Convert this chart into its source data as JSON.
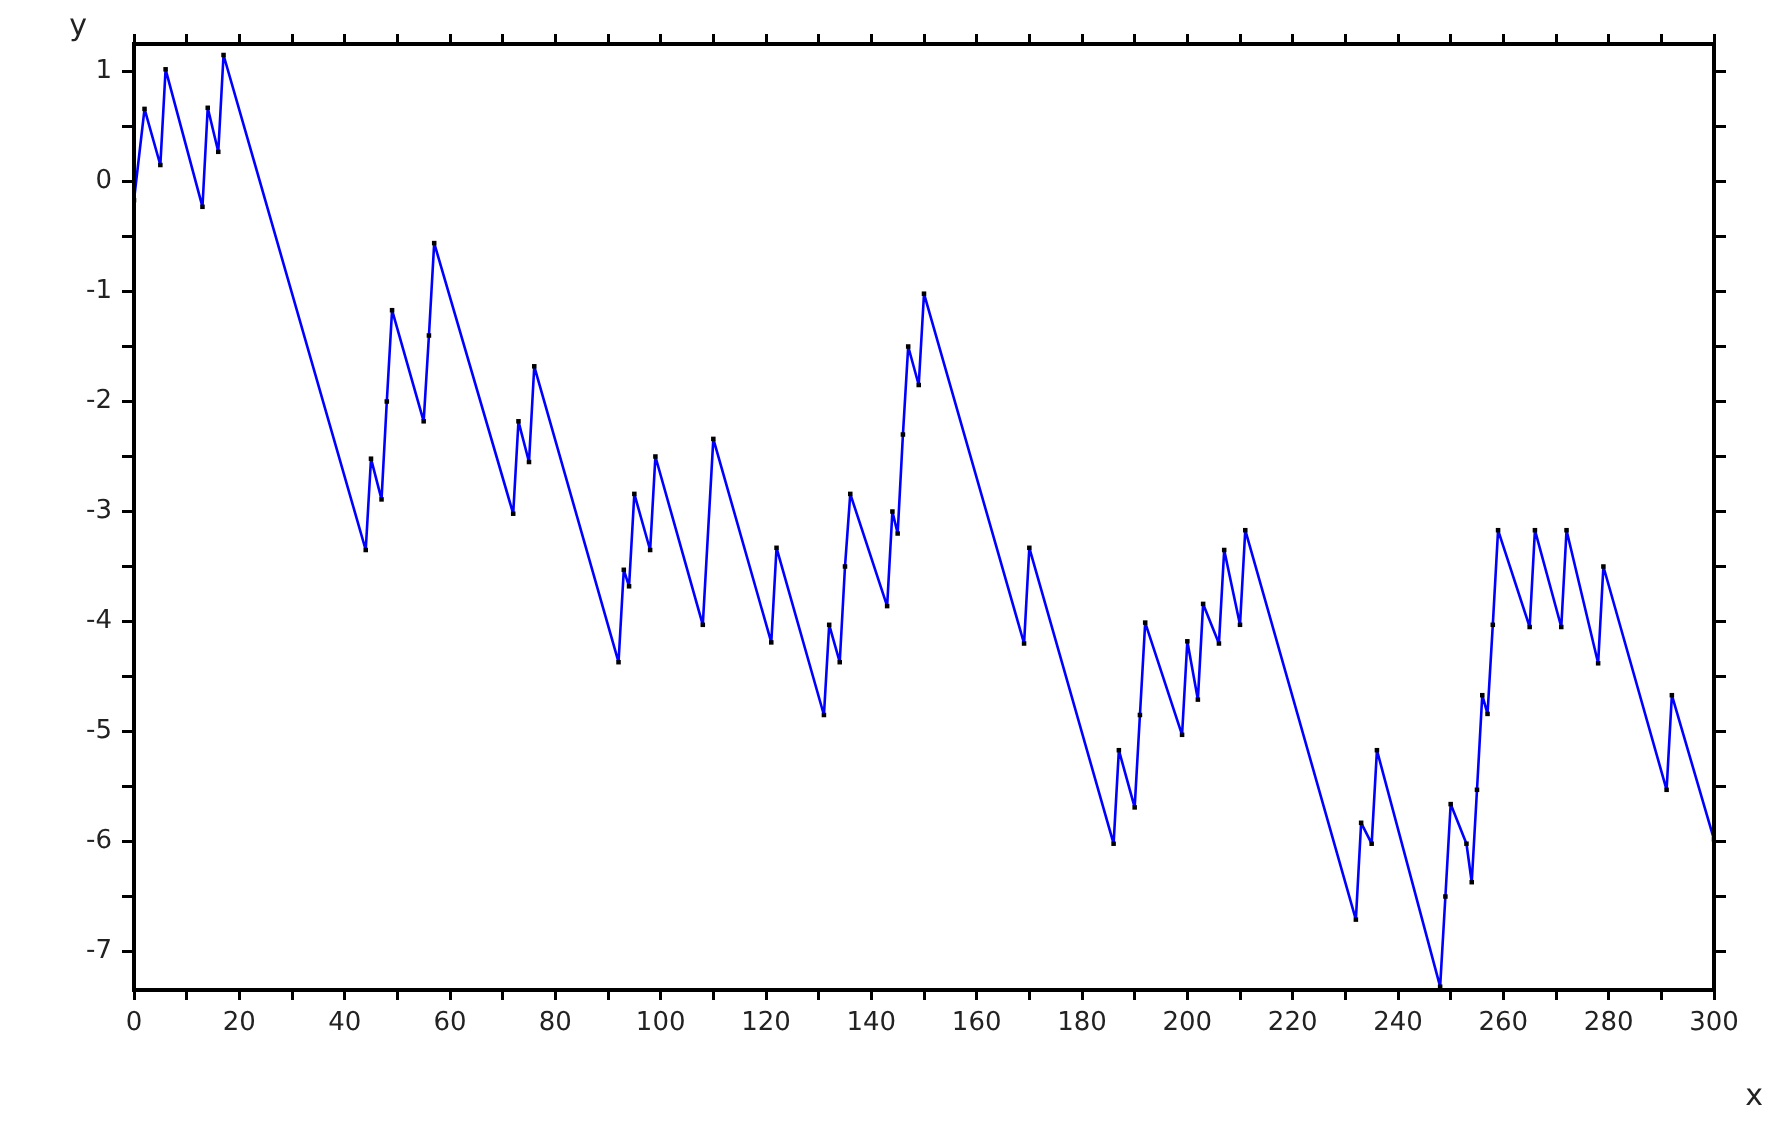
{
  "chart_data": {
    "type": "line",
    "xlabel": "x",
    "ylabel": "y",
    "xlim": [
      0,
      300
    ],
    "ylim": [
      -7.35,
      1.25
    ],
    "marker": "square",
    "line_style": "solid",
    "grid": false,
    "legend": false,
    "xticks": [
      0,
      {
        "value": 10,
        "label": null
      },
      20,
      {
        "value": 30,
        "label": null
      },
      40,
      {
        "value": 50,
        "label": null
      },
      60,
      {
        "value": 70,
        "label": null
      },
      80,
      {
        "value": 90,
        "label": null
      },
      100,
      {
        "value": 110,
        "label": null
      },
      120,
      {
        "value": 130,
        "label": null
      },
      140,
      {
        "value": 150,
        "label": null
      },
      160,
      {
        "value": 170,
        "label": null
      },
      180,
      {
        "value": 190,
        "label": null
      },
      200,
      {
        "value": 210,
        "label": null
      },
      220,
      {
        "value": 230,
        "label": null
      },
      240,
      {
        "value": 250,
        "label": null
      },
      260,
      {
        "value": 270,
        "label": null
      },
      280,
      {
        "value": 290,
        "label": null
      },
      300
    ],
    "yticks": [
      -7,
      {
        "value": -6.5,
        "label": null
      },
      -6,
      {
        "value": -5.5,
        "label": null
      },
      -5,
      {
        "value": -4.5,
        "label": null
      },
      -4,
      {
        "value": -3.5,
        "label": null
      },
      -3,
      {
        "value": -2.5,
        "label": null
      },
      -2,
      {
        "value": -1.5,
        "label": null
      },
      -1,
      {
        "value": -0.5,
        "label": null
      },
      0,
      {
        "value": 0.5,
        "label": null
      },
      1
    ],
    "series": [
      {
        "color": "#0000ff",
        "x": [
          0,
          2,
          5,
          6,
          13,
          14,
          16,
          17,
          44,
          45,
          47,
          48,
          49,
          55,
          56,
          57,
          72,
          73,
          75,
          76,
          92,
          93,
          94,
          95,
          98,
          99,
          108,
          110,
          121,
          122,
          131,
          132,
          134,
          135,
          136,
          143,
          144,
          145,
          146,
          147,
          149,
          150,
          169,
          170,
          186,
          187,
          190,
          191,
          192,
          199,
          200,
          202,
          203,
          206,
          207,
          210,
          211,
          232,
          233,
          235,
          236,
          248,
          249,
          250,
          253,
          254,
          255,
          256,
          257,
          258,
          259,
          265,
          266,
          271,
          272,
          278,
          279,
          291,
          292,
          300
        ],
        "values": [
          -0.17,
          0.66,
          0.15,
          1.02,
          -0.23,
          0.67,
          0.27,
          1.15,
          -3.35,
          -2.52,
          -2.89,
          -2.0,
          -1.17,
          -2.18,
          -1.4,
          -0.56,
          -3.02,
          -2.18,
          -2.55,
          -1.68,
          -4.37,
          -3.53,
          -3.68,
          -2.84,
          -3.35,
          -2.5,
          -4.03,
          -2.34,
          -4.19,
          -3.33,
          -4.85,
          -4.03,
          -4.37,
          -3.5,
          -2.84,
          -3.86,
          -3.0,
          -3.2,
          -2.3,
          -1.5,
          -1.85,
          -1.02,
          -4.2,
          -3.33,
          -6.02,
          -5.17,
          -5.69,
          -4.85,
          -4.01,
          -5.03,
          -4.18,
          -4.71,
          -3.84,
          -4.2,
          -3.35,
          -4.03,
          -3.17,
          -6.71,
          -5.83,
          -6.02,
          -5.17,
          -7.32,
          -6.5,
          -5.66,
          -6.02,
          -6.37,
          -5.53,
          -4.67,
          -4.84,
          -4.03,
          -3.17,
          -4.05,
          -3.17,
          -4.05,
          -3.17,
          -4.38,
          -3.5,
          -5.53,
          -4.67,
          -5.98
        ]
      }
    ]
  }
}
